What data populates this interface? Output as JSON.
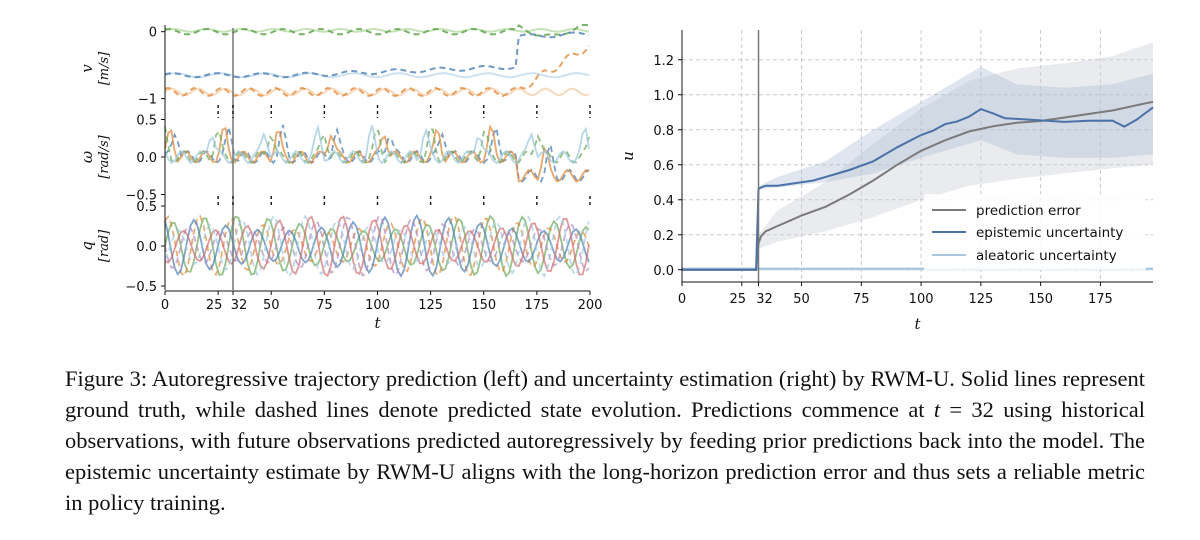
{
  "figure": {
    "left": {
      "panels": [
        {
          "ylabel_sym": "v",
          "ylabel_unit": "[m/s]",
          "ticks": [
            {
              "v": 0,
              "label": "0"
            },
            {
              "v": -1,
              "label": "−1"
            }
          ],
          "ylim": [
            -1.2,
            0.1
          ]
        },
        {
          "ylabel_sym": "ω",
          "ylabel_unit": "[rad/s]",
          "ticks": [
            {
              "v": 0.5,
              "label": "0.5"
            },
            {
              "v": 0,
              "label": "0.0"
            },
            {
              "v": -0.5,
              "label": "−0.5"
            }
          ],
          "ylim": [
            -0.6,
            0.6
          ]
        },
        {
          "ylabel_sym": "q",
          "ylabel_unit": "[rad]",
          "ticks": [
            {
              "v": 0.5,
              "label": "0.5"
            },
            {
              "v": 0,
              "label": "0.0"
            },
            {
              "v": -0.5,
              "label": "−0.5"
            }
          ],
          "ylim": [
            -0.55,
            0.55
          ]
        }
      ],
      "xticks": [
        "0",
        "25",
        "32",
        "50",
        "75",
        "100",
        "125",
        "150",
        "175",
        "200"
      ],
      "xtick_values": [
        0,
        25,
        32,
        50,
        75,
        100,
        125,
        150,
        175,
        200
      ],
      "xlabel": "t",
      "xlim": [
        0,
        200
      ],
      "vline_at": 32
    },
    "right": {
      "chart_data": {
        "type": "line",
        "xlabel": "t",
        "ylabel": "u",
        "xlim": [
          0,
          197
        ],
        "ylim": [
          -0.07,
          1.37
        ],
        "xticks": [
          0,
          25,
          32,
          50,
          75,
          100,
          125,
          150,
          175
        ],
        "xtick_labels": [
          "0",
          "25",
          "32",
          "50",
          "75",
          "100",
          "125",
          "150",
          "175"
        ],
        "yticks": [
          0.0,
          0.2,
          0.4,
          0.6,
          0.8,
          1.0,
          1.2
        ],
        "ytick_labels": [
          "0.0",
          "0.2",
          "0.4",
          "0.6",
          "0.8",
          "1.0",
          "1.2"
        ],
        "vline_at": 32,
        "series": [
          {
            "name": "prediction error",
            "color": "#7a7a7a",
            "x": [
              0,
              31,
              32,
              33,
              35,
              40,
              45,
              50,
              60,
              70,
              80,
              90,
              100,
              110,
              120,
              130,
              140,
              150,
              160,
              170,
              180,
              190,
              197
            ],
            "y": [
              0,
              0,
              0.15,
              0.19,
              0.22,
              0.25,
              0.28,
              0.31,
              0.36,
              0.43,
              0.51,
              0.6,
              0.68,
              0.74,
              0.79,
              0.82,
              0.84,
              0.85,
              0.87,
              0.89,
              0.91,
              0.94,
              0.96
            ]
          },
          {
            "name": "epistemic uncertainty",
            "color": "#4a72a8",
            "x": [
              0,
              31,
              32,
              33,
              35,
              40,
              45,
              50,
              55,
              60,
              70,
              80,
              90,
              100,
              105,
              110,
              115,
              120,
              125,
              130,
              135,
              140,
              150,
              160,
              170,
              180,
              185,
              190,
              197
            ],
            "y": [
              0,
              0,
              0.46,
              0.47,
              0.48,
              0.48,
              0.49,
              0.5,
              0.51,
              0.53,
              0.57,
              0.62,
              0.7,
              0.77,
              0.79,
              0.82,
              0.84,
              0.88,
              0.93,
              0.9,
              0.86,
              0.85,
              0.86,
              0.85,
              0.84,
              0.86,
              0.83,
              0.86,
              0.92
            ]
          },
          {
            "name": "aleatoric uncertainty",
            "color": "#a9c8df",
            "x": [
              0,
              197
            ],
            "y": [
              0.005,
              0.005
            ]
          }
        ],
        "band_error": {
          "x": [
            32,
            40,
            60,
            80,
            100,
            120,
            140,
            160,
            180,
            197
          ],
          "lo": [
            0.12,
            0.16,
            0.22,
            0.3,
            0.4,
            0.48,
            0.52,
            0.55,
            0.58,
            0.6
          ],
          "hi": [
            0.2,
            0.34,
            0.5,
            0.72,
            0.92,
            1.08,
            1.15,
            1.18,
            1.22,
            1.3
          ]
        },
        "band_epistemic": {
          "x": [
            32,
            40,
            60,
            80,
            100,
            120,
            125,
            140,
            160,
            180,
            197
          ],
          "lo": [
            0.46,
            0.47,
            0.5,
            0.55,
            0.64,
            0.72,
            0.74,
            0.66,
            0.64,
            0.64,
            0.66
          ],
          "hi": [
            0.48,
            0.53,
            0.62,
            0.8,
            0.96,
            1.12,
            1.16,
            1.06,
            1.04,
            1.06,
            1.12
          ]
        }
      }
    }
  },
  "caption": {
    "p1": "Figure 3: Autoregressive trajectory prediction (left) and uncertainty estimation (right) by RWM-U. Solid lines represent ground truth, while dashed lines denote predicted state evolution. Predictions commence at ",
    "m1": "t",
    "p2": " = 32 using historical observations, with future observations predicted autoregressively by feeding prior predictions back into the model. The epistemic uncertainty estimate by RWM-U aligns with the long-horizon prediction error and thus sets a reliable metric in policy training."
  }
}
